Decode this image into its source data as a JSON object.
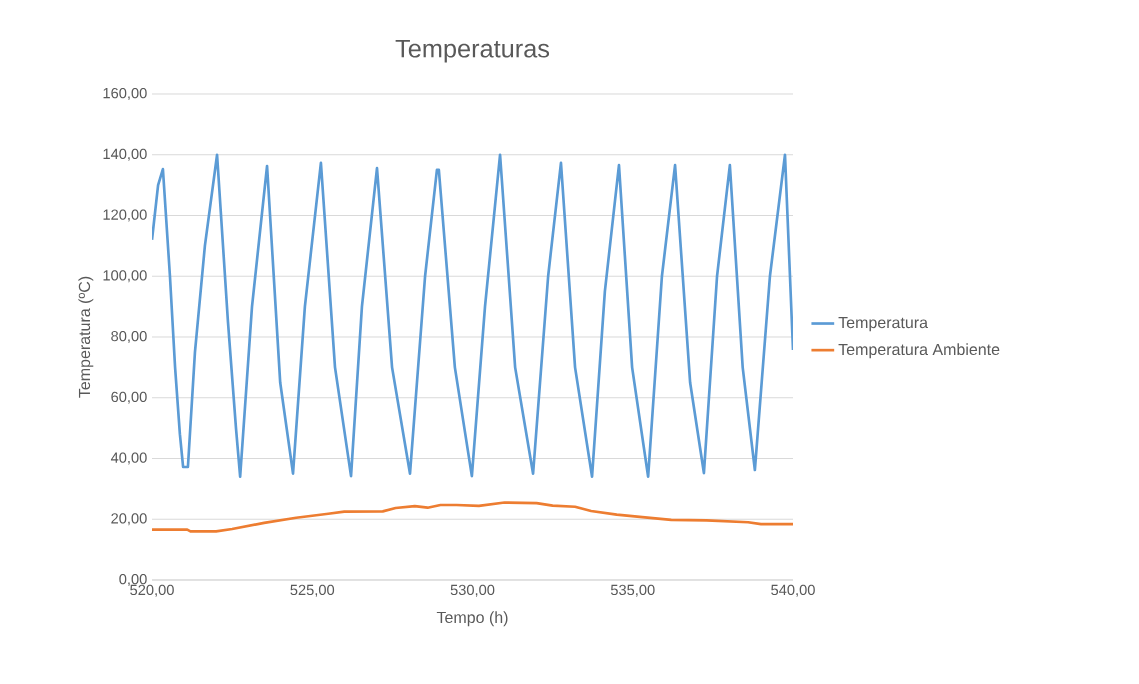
{
  "chart_data": {
    "type": "line",
    "title": "Temperaturas",
    "xlabel": "Tempo (h)",
    "ylabel": "Temperatura (ºC)",
    "xlim": [
      520,
      540
    ],
    "ylim": [
      0,
      160
    ],
    "xticks": [
      {
        "value": 520,
        "label": "520,00"
      },
      {
        "value": 525,
        "label": "525,00"
      },
      {
        "value": 530,
        "label": "530,00"
      },
      {
        "value": 535,
        "label": "535,00"
      },
      {
        "value": 540,
        "label": "540,00"
      }
    ],
    "yticks": [
      {
        "value": 0,
        "label": "0,00"
      },
      {
        "value": 20,
        "label": "20,00"
      },
      {
        "value": 40,
        "label": "40,00"
      },
      {
        "value": 60,
        "label": "60,00"
      },
      {
        "value": 80,
        "label": "80,00"
      },
      {
        "value": 100,
        "label": "100,00"
      },
      {
        "value": 120,
        "label": "120,00"
      },
      {
        "value": 140,
        "label": "140,00"
      },
      {
        "value": 160,
        "label": "160,00"
      }
    ],
    "grid": "y",
    "legend": "right",
    "marker": "none",
    "line_style": "solid",
    "series": [
      {
        "name": "Temperatura",
        "color": "#5b9bd5",
        "x": [
          520.0,
          520.19,
          520.34,
          520.56,
          520.72,
          520.87,
          520.97,
          521.12,
          521.34,
          521.65,
          522.03,
          522.37,
          522.62,
          522.75,
          523.12,
          523.59,
          524.0,
          524.4,
          524.77,
          525.27,
          525.71,
          526.21,
          526.55,
          527.02,
          527.49,
          528.05,
          528.52,
          528.89,
          528.95,
          529.45,
          529.98,
          530.39,
          530.86,
          531.33,
          531.89,
          532.36,
          532.76,
          533.2,
          533.73,
          534.13,
          534.57,
          534.98,
          535.48,
          535.91,
          536.32,
          536.79,
          537.22,
          537.63,
          538.03,
          538.43,
          538.81,
          539.28,
          539.75,
          540.0
        ],
        "values": [
          112,
          130,
          135.3,
          100,
          70,
          48,
          37.2,
          37.2,
          75,
          110,
          140,
          85,
          50,
          34,
          90,
          136.3,
          65,
          35,
          90,
          137.3,
          70,
          34.2,
          90,
          135.6,
          70,
          35,
          100,
          135,
          135,
          70,
          34.2,
          90,
          140,
          70,
          35,
          100,
          137.3,
          70,
          34,
          95,
          136.6,
          70,
          34,
          100,
          136.6,
          65,
          35.2,
          100,
          136.6,
          70,
          36.2,
          100,
          140,
          75.7
        ]
      },
      {
        "name": "Temperatura Ambiente",
        "color": "#ed7d31",
        "x": [
          520.0,
          521.1,
          521.2,
          522.0,
          522.5,
          523.5,
          524.5,
          525.5,
          526.0,
          527.2,
          527.6,
          528.2,
          528.6,
          529.0,
          529.5,
          530.2,
          531.0,
          532.0,
          532.5,
          533.2,
          533.7,
          534.5,
          535.3,
          536.2,
          537.3,
          538.6,
          539.0,
          540.0
        ],
        "values": [
          16.6,
          16.6,
          16.0,
          16.0,
          16.8,
          18.8,
          20.5,
          21.8,
          22.5,
          22.6,
          23.7,
          24.3,
          23.8,
          24.7,
          24.7,
          24.4,
          25.5,
          25.3,
          24.5,
          24.1,
          22.7,
          21.5,
          20.7,
          19.8,
          19.6,
          19.0,
          18.4,
          18.4
        ]
      }
    ]
  }
}
